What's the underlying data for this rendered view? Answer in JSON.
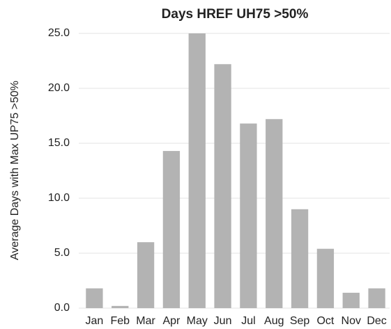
{
  "chart_data": {
    "type": "bar",
    "title": "Days HREF UH75 >50%",
    "y_label": "Average Days with Max UP75 >50%",
    "categories": [
      "Jan",
      "Feb",
      "Mar",
      "Apr",
      "May",
      "Jun",
      "Jul",
      "Aug",
      "Sep",
      "Oct",
      "Nov",
      "Dec"
    ],
    "values": [
      1.8,
      0.2,
      6.0,
      14.3,
      25.0,
      22.2,
      16.8,
      17.2,
      9.0,
      5.4,
      1.4,
      1.8
    ],
    "color": "#b3b3b3",
    "ylim": [
      0,
      25
    ],
    "yticks": [
      {
        "value": 0,
        "label": "0.0"
      },
      {
        "value": 5,
        "label": "5.0"
      },
      {
        "value": 10,
        "label": "10.0"
      },
      {
        "value": 15,
        "label": "15.0"
      },
      {
        "value": 20,
        "label": "20.0"
      },
      {
        "value": 25,
        "label": "25.0"
      }
    ],
    "grid": true
  }
}
